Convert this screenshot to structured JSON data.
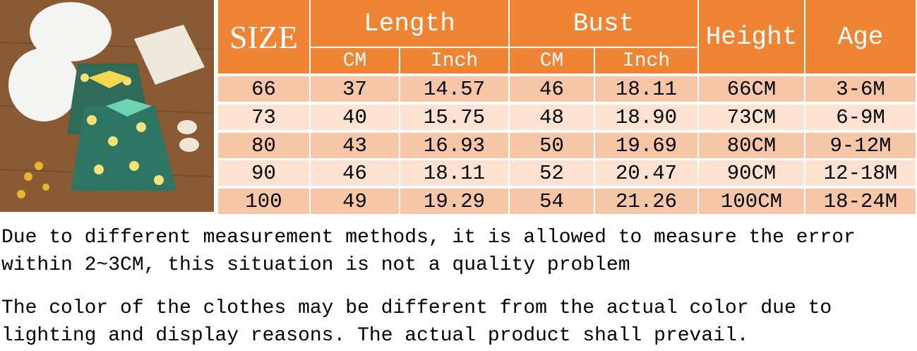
{
  "table": {
    "header": {
      "size": "SIZE",
      "length": "Length",
      "bust": "Bust",
      "height": "Height",
      "age": "Age",
      "length_units": [
        "CM",
        "Inch"
      ],
      "bust_units": [
        "CM",
        "Inch"
      ]
    },
    "rows": [
      [
        "66",
        "37",
        "14.57",
        "46",
        "18.11",
        "66CM",
        "3-6M"
      ],
      [
        "73",
        "40",
        "15.75",
        "48",
        "18.90",
        "73CM",
        "6-9M"
      ],
      [
        "80",
        "43",
        "16.93",
        "50",
        "19.69",
        "80CM",
        "9-12M"
      ],
      [
        "90",
        "46",
        "18.11",
        "52",
        "20.47",
        "90CM",
        "12-18M"
      ],
      [
        "100",
        "49",
        "19.29",
        "54",
        "21.26",
        "100CM",
        "18-24M"
      ]
    ]
  },
  "notes": [
    [
      "Due to different measurement methods, it is allowed to measure the error",
      "within 2~3CM, this situation is not a quality problem"
    ],
    [
      "The color of the clothes may be different from the actual color due to",
      "lighting and display reasons. The actual product shall prevail."
    ]
  ]
}
